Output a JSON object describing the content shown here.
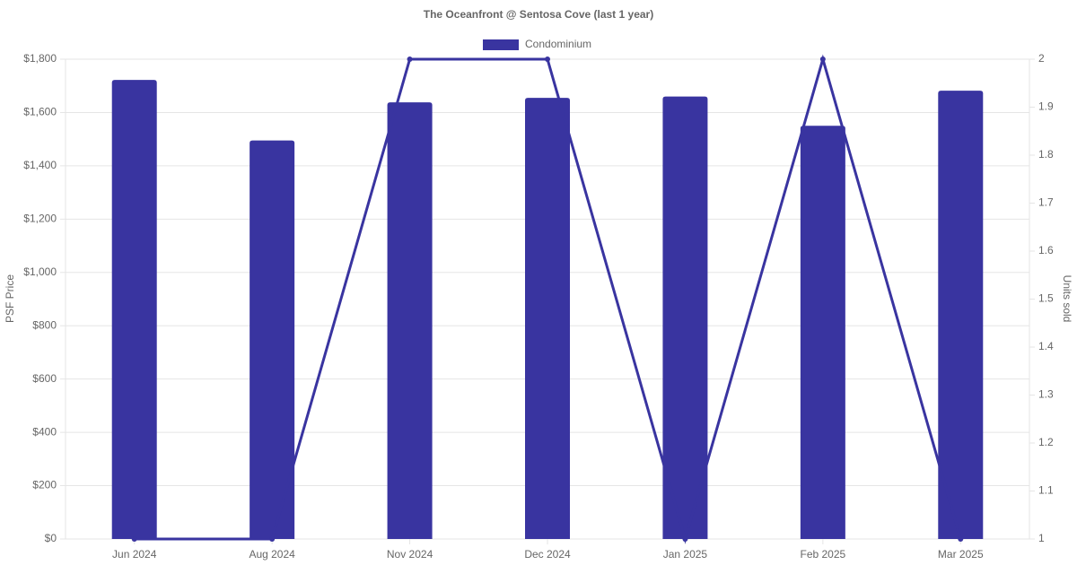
{
  "chart_data": {
    "type": "bar",
    "title": "The Oceanfront @ Sentosa Cove (last 1 year)",
    "y_label": "PSF Price",
    "y2_label": "Units sold",
    "categories": [
      "Jun 2024",
      "Aug 2024",
      "Nov 2024",
      "Dec 2024",
      "Jan 2025",
      "Feb 2025",
      "Mar 2025"
    ],
    "series": [
      {
        "name": "Condominium",
        "type": "bar",
        "color": "#3934a0",
        "values": [
          1722,
          1495,
          1638,
          1655,
          1660,
          1550,
          1682
        ]
      },
      {
        "type": "line",
        "color": "#3934a0",
        "axis": "y2",
        "values": [
          1,
          1,
          2,
          2,
          1,
          2,
          1
        ]
      }
    ],
    "ylim": [
      0,
      1800
    ],
    "yticks": [
      {
        "value": 0,
        "label": "$0"
      },
      {
        "value": 200,
        "label": "$200"
      },
      {
        "value": 400,
        "label": "$400"
      },
      {
        "value": 600,
        "label": "$600"
      },
      {
        "value": 800,
        "label": "$800"
      },
      {
        "value": 1000,
        "label": "$1,000"
      },
      {
        "value": 1200,
        "label": "$1,200"
      },
      {
        "value": 1400,
        "label": "$1,400"
      },
      {
        "value": 1600,
        "label": "$1,600"
      },
      {
        "value": 1800,
        "label": "$1,800"
      }
    ],
    "y2lim": [
      1,
      2
    ],
    "y2ticks": [
      1,
      1.1,
      1.2,
      1.3,
      1.4,
      1.5,
      1.6,
      1.7,
      1.8,
      1.9,
      2
    ],
    "grid": true,
    "legend": "top"
  }
}
